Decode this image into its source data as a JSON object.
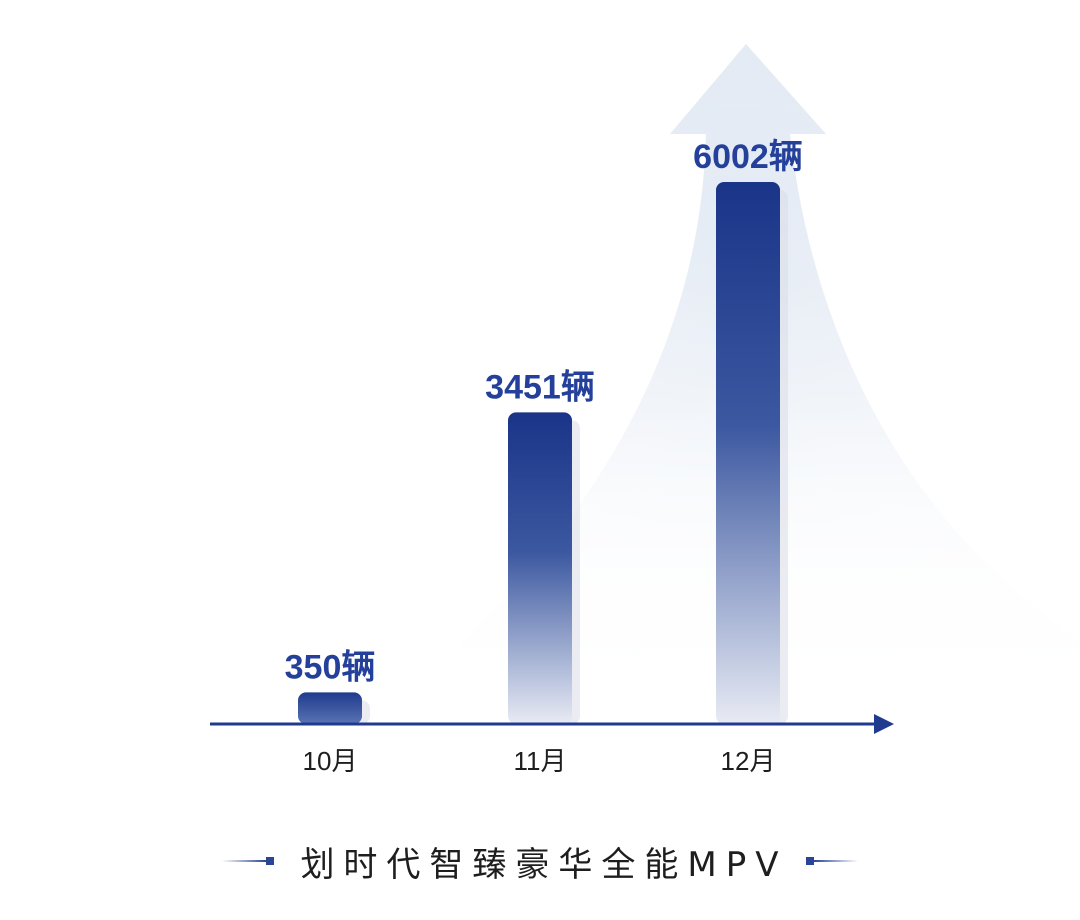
{
  "chart_data": {
    "type": "bar",
    "categories": [
      "10月",
      "11月",
      "12月"
    ],
    "values": [
      350,
      3451,
      6002
    ],
    "data_labels": [
      "350辆",
      "3451辆",
      "6002辆"
    ],
    "title": "",
    "xlabel": "",
    "ylabel": "",
    "ylim": [
      0,
      6002
    ],
    "grid": false,
    "legend": "none",
    "colors": {
      "bar_top": "#1a3488",
      "bar_bottom": "#e6e9f2",
      "axis": "#1f3a8f",
      "label": "#24409a"
    }
  },
  "footer": {
    "tagline": "划时代智臻豪华全能MPV"
  }
}
